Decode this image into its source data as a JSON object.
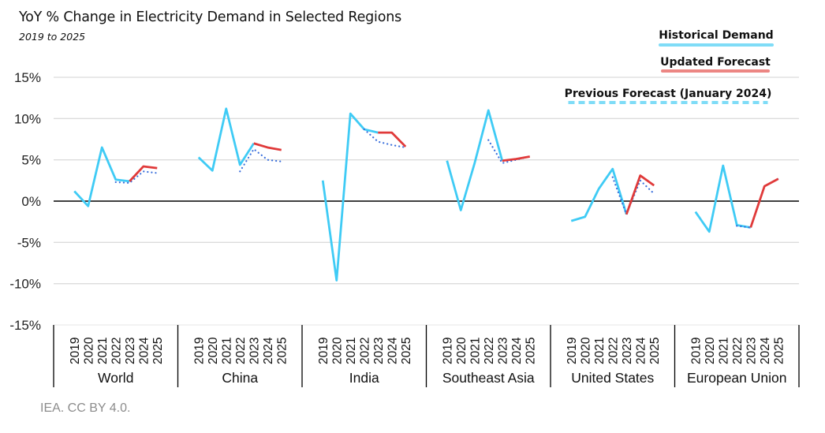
{
  "chart_data": {
    "type": "line",
    "title": "YoY % Change in Electricity Demand in Selected Regions",
    "subtitle": "2019 to 2025",
    "xlabel": "",
    "ylabel": "",
    "ylim": [
      -15,
      15
    ],
    "yticks": [
      15,
      10,
      5,
      0,
      -5,
      -10,
      -15
    ],
    "ytick_labels": [
      "15%",
      "10%",
      "5%",
      "0%",
      "-5%",
      "-10%",
      "-15%"
    ],
    "grid": true,
    "legend_position": "top-right",
    "years": [
      "2019",
      "2020",
      "2021",
      "2022",
      "2023",
      "2024",
      "2025"
    ],
    "groups": [
      {
        "name": "World",
        "historical": [
          1.2,
          -0.6,
          6.5,
          2.6,
          2.4,
          null,
          null
        ],
        "updated_forecast": [
          null,
          null,
          null,
          null,
          2.4,
          4.2,
          4.0
        ],
        "previous_forecast": [
          null,
          null,
          null,
          2.3,
          2.2,
          3.6,
          3.4
        ]
      },
      {
        "name": "China",
        "historical": [
          5.3,
          3.7,
          11.2,
          4.4,
          7.0,
          null,
          null
        ],
        "updated_forecast": [
          null,
          null,
          null,
          null,
          7.0,
          6.5,
          6.2
        ],
        "previous_forecast": [
          null,
          null,
          null,
          3.6,
          6.3,
          5.0,
          4.8
        ]
      },
      {
        "name": "India",
        "historical": [
          2.5,
          -9.6,
          10.6,
          8.7,
          8.3,
          null,
          null
        ],
        "updated_forecast": [
          null,
          null,
          null,
          null,
          8.3,
          8.3,
          6.6
        ],
        "previous_forecast": [
          null,
          null,
          null,
          8.7,
          7.2,
          6.8,
          6.5
        ]
      },
      {
        "name": "Southeast Asia",
        "historical": [
          4.9,
          -1.1,
          4.6,
          11.0,
          4.9,
          null,
          null
        ],
        "updated_forecast": [
          null,
          null,
          null,
          null,
          4.9,
          5.1,
          5.4
        ],
        "previous_forecast": [
          null,
          null,
          null,
          7.4,
          4.6,
          5.0,
          5.4
        ]
      },
      {
        "name": "United States",
        "historical": [
          -2.4,
          -1.9,
          1.5,
          3.9,
          -1.6,
          null,
          null
        ],
        "updated_forecast": [
          null,
          null,
          null,
          null,
          -1.6,
          3.1,
          1.9
        ],
        "previous_forecast": [
          null,
          null,
          null,
          2.9,
          -1.6,
          2.5,
          0.9
        ]
      },
      {
        "name": "European Union",
        "historical": [
          -1.3,
          -3.7,
          4.3,
          -2.9,
          -3.2,
          null,
          null
        ],
        "updated_forecast": [
          null,
          null,
          null,
          null,
          -3.2,
          1.8,
          2.7
        ],
        "previous_forecast": [
          null,
          null,
          null,
          -3.0,
          -3.2,
          1.8,
          2.7
        ]
      }
    ],
    "series": [
      {
        "name": "Historical Demand",
        "key": "historical",
        "color": "#3fcbf5",
        "legend_color": "#7fdcf7",
        "style": "solid"
      },
      {
        "name": "Updated Forecast",
        "key": "updated_forecast",
        "color": "#e03a3a",
        "legend_color": "#ec8683",
        "style": "solid"
      },
      {
        "name": "Previous Forecast (January 2024)",
        "key": "previous_forecast",
        "color": "#3a6fdc",
        "legend_color": "#7fdcf7",
        "style": "dotted"
      }
    ]
  },
  "source": "IEA. CC BY 4.0."
}
